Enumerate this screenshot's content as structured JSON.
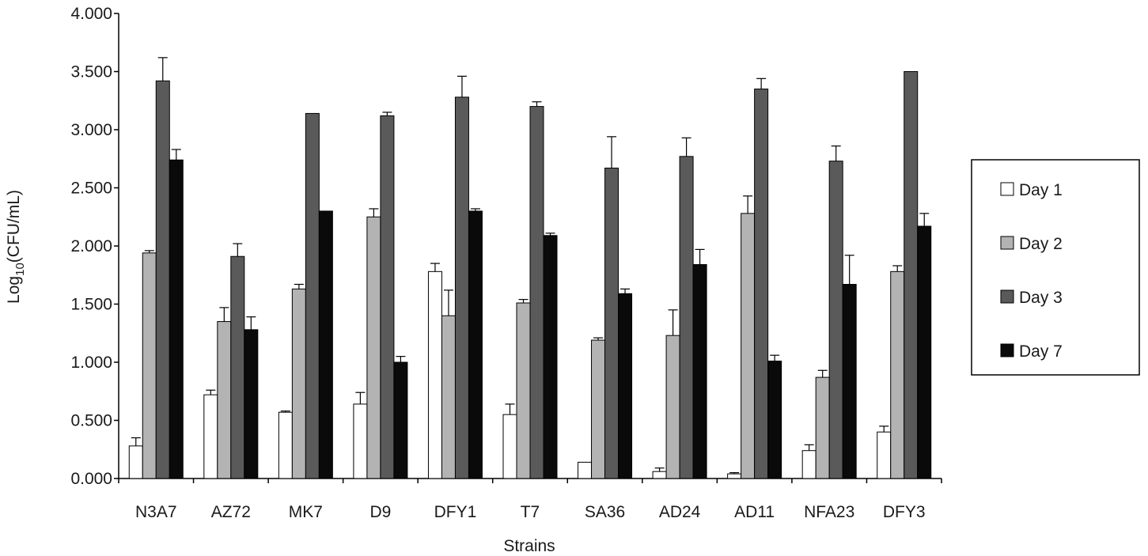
{
  "chart_data": {
    "type": "bar",
    "title": "",
    "xlabel": "Strains",
    "ylabel_main": "Log",
    "ylabel_sub": "10",
    "ylabel_tail": "(CFU/mL)",
    "ylim": [
      0,
      4
    ],
    "yticks": [
      0,
      0.5,
      1,
      1.5,
      2,
      2.5,
      3,
      3.5,
      4
    ],
    "ytick_labels": [
      "0.000",
      "0.500",
      "1.000",
      "1.500",
      "2.000",
      "2.500",
      "3.000",
      "3.500",
      "4.000"
    ],
    "grid": false,
    "legend_position": "right",
    "categories": [
      "N3A7",
      "AZ72",
      "MK7",
      "D9",
      "DFY1",
      "T7",
      "SA36",
      "AD24",
      "AD11",
      "NFA23",
      "DFY3"
    ],
    "series": [
      {
        "name": "Day 1",
        "color": "#ffffff",
        "values": [
          0.28,
          0.72,
          0.57,
          0.64,
          1.78,
          0.55,
          0.14,
          0.06,
          0.04,
          0.24,
          0.4
        ],
        "errors": [
          0.07,
          0.04,
          0.01,
          0.1,
          0.07,
          0.09,
          0.0,
          0.03,
          0.01,
          0.05,
          0.05
        ]
      },
      {
        "name": "Day 2",
        "color": "#b3b3b3",
        "values": [
          1.94,
          1.35,
          1.63,
          2.25,
          1.4,
          1.51,
          1.19,
          1.23,
          2.28,
          0.87,
          1.78
        ],
        "errors": [
          0.02,
          0.12,
          0.04,
          0.07,
          0.22,
          0.03,
          0.02,
          0.22,
          0.15,
          0.06,
          0.05
        ]
      },
      {
        "name": "Day 3",
        "color": "#5a5a5a",
        "values": [
          3.42,
          1.91,
          3.14,
          3.12,
          3.28,
          3.2,
          2.67,
          2.77,
          3.35,
          2.73,
          3.5
        ],
        "errors": [
          0.2,
          0.11,
          0.0,
          0.03,
          0.18,
          0.04,
          0.27,
          0.16,
          0.09,
          0.13,
          0.0
        ]
      },
      {
        "name": "Day 7",
        "color": "#0a0a0a",
        "values": [
          2.74,
          1.28,
          2.3,
          1.0,
          2.3,
          2.09,
          1.59,
          1.84,
          1.01,
          1.67,
          2.17
        ],
        "errors": [
          0.09,
          0.11,
          0.0,
          0.05,
          0.02,
          0.02,
          0.04,
          0.13,
          0.05,
          0.25,
          0.11
        ]
      }
    ]
  }
}
